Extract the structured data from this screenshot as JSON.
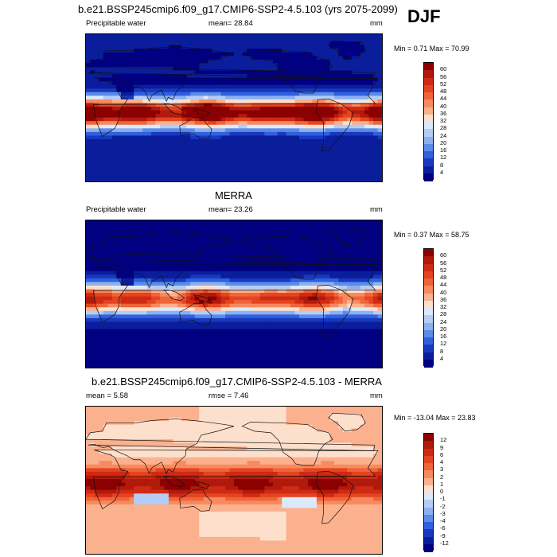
{
  "season": "DJF",
  "panels": [
    {
      "id": "model",
      "title": "b.e21.BSSP245cmip6.f09_g17.CMIP6-SSP2-4.5.103 (yrs 2075-2099)",
      "left_label": "Precipitable water",
      "center_label": "mean=  28.84",
      "units": "mm",
      "minmax": "Min =   0.71 Max =  70.99",
      "colorbar": {
        "labels": [
          "60",
          "56",
          "52",
          "48",
          "44",
          "40",
          "36",
          "32",
          "28",
          "24",
          "20",
          "16",
          "12",
          "8",
          "4"
        ],
        "colors": [
          "#8b0000",
          "#b01a0c",
          "#cf2a14",
          "#e44420",
          "#f0643a",
          "#f78a5e",
          "#fbb08e",
          "#fde0cc",
          "#dce9fb",
          "#b4cdf6",
          "#8cb0f0",
          "#5a8ce8",
          "#3060dc",
          "#1838c0",
          "#0a1e9c",
          "#000080"
        ]
      },
      "field": {
        "equator": 62,
        "pole": 4,
        "ocean_boost": 6
      }
    },
    {
      "id": "obs",
      "title": "MERRA",
      "left_label": "Precipitable water",
      "center_label": "mean=  23.26",
      "units": "mm",
      "minmax": "Min =   0.37 Max =  58.75",
      "colorbar": {
        "labels": [
          "60",
          "56",
          "52",
          "48",
          "44",
          "40",
          "36",
          "32",
          "28",
          "24",
          "20",
          "16",
          "12",
          "8",
          "4"
        ],
        "colors": [
          "#8b0000",
          "#b01a0c",
          "#cf2a14",
          "#e44420",
          "#f0643a",
          "#f78a5e",
          "#fbb08e",
          "#fde0cc",
          "#dce9fb",
          "#b4cdf6",
          "#8cb0f0",
          "#5a8ce8",
          "#3060dc",
          "#1838c0",
          "#0a1e9c",
          "#000080"
        ]
      },
      "field": {
        "equator": 50,
        "pole": 3,
        "ocean_boost": 4
      }
    },
    {
      "id": "diff",
      "title": "b.e21.BSSP245cmip6.f09_g17.CMIP6-SSP2-4.5.103 - MERRA",
      "left_label": "mean =   5.58",
      "center_label": "rmse =   7.46",
      "units": "mm",
      "minmax": "Min = -13.04 Max =  23.83",
      "colorbar": {
        "labels": [
          "12",
          "9",
          "6",
          "4",
          "3",
          "2",
          "1",
          "0",
          "-1",
          "-2",
          "-3",
          "-4",
          "-6",
          "-9",
          "-12"
        ],
        "colors": [
          "#8b0000",
          "#b01a0c",
          "#cf2a14",
          "#e44420",
          "#f0643a",
          "#f78a5e",
          "#fbb08e",
          "#fde0cc",
          "#dce9fb",
          "#b4cdf6",
          "#8cb0f0",
          "#5a8ce8",
          "#3060dc",
          "#1838c0",
          "#0a1e9c",
          "#000080"
        ]
      },
      "field": {
        "equator": 12,
        "pole": 1,
        "ocean_boost": 0
      }
    }
  ]
}
